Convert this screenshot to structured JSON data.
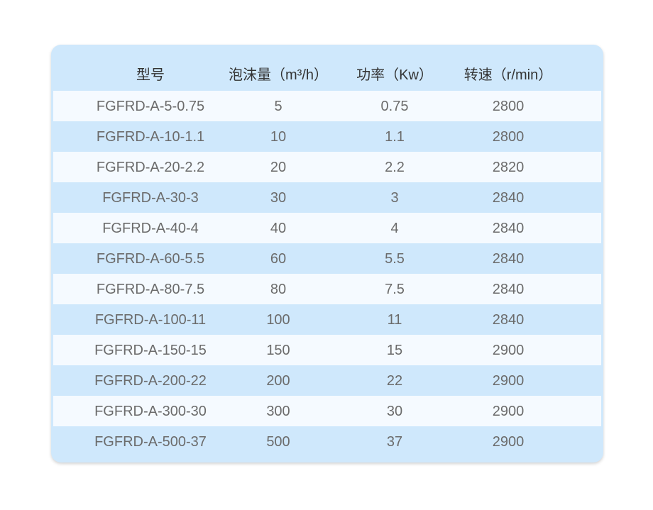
{
  "table": {
    "headers": [
      "型号",
      "泡沫量（m³/h）",
      "功率（Kw）",
      "转速（r/min）"
    ],
    "rows": [
      [
        "FGFRD-A-5-0.75",
        "5",
        "0.75",
        "2800"
      ],
      [
        "FGFRD-A-10-1.1",
        "10",
        "1.1",
        "2800"
      ],
      [
        "FGFRD-A-20-2.2",
        "20",
        "2.2",
        "2820"
      ],
      [
        "FGFRD-A-30-3",
        "30",
        "3",
        "2840"
      ],
      [
        "FGFRD-A-40-4",
        "40",
        "4",
        "2840"
      ],
      [
        "FGFRD-A-60-5.5",
        "60",
        "5.5",
        "2840"
      ],
      [
        "FGFRD-A-80-7.5",
        "80",
        "7.5",
        "2840"
      ],
      [
        "FGFRD-A-100-11",
        "100",
        "11",
        "2840"
      ],
      [
        "FGFRD-A-150-15",
        "150",
        "15",
        "2900"
      ],
      [
        "FGFRD-A-200-22",
        "200",
        "22",
        "2900"
      ],
      [
        "FGFRD-A-300-30",
        "300",
        "30",
        "2900"
      ],
      [
        "FGFRD-A-500-37",
        "500",
        "37",
        "2900"
      ]
    ]
  },
  "colors": {
    "row_light": "#f5faff",
    "row_blue": "#cfe8fc"
  }
}
